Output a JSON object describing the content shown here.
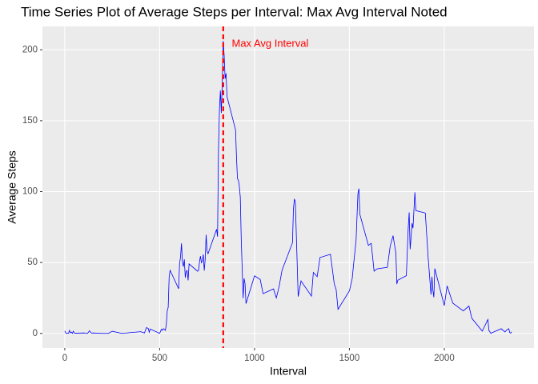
{
  "chart_data": {
    "type": "line",
    "title": "Time Series Plot of Average Steps per Interval: Max Avg Interval Noted",
    "x_label": "Interval",
    "y_label": "Average Steps",
    "x": [
      0,
      5,
      10,
      15,
      20,
      25,
      30,
      35,
      40,
      45,
      50,
      55,
      100,
      110,
      120,
      130,
      140,
      150,
      200,
      230,
      250,
      300,
      320,
      340,
      400,
      420,
      430,
      440,
      445,
      450,
      500,
      505,
      510,
      515,
      520,
      525,
      530,
      535,
      540,
      545,
      550,
      555,
      600,
      605,
      610,
      615,
      620,
      625,
      630,
      635,
      640,
      645,
      650,
      655,
      700,
      705,
      710,
      715,
      720,
      725,
      730,
      735,
      740,
      745,
      750,
      755,
      800,
      805,
      810,
      815,
      820,
      825,
      830,
      835,
      840,
      845,
      850,
      855,
      900,
      905,
      910,
      915,
      920,
      925,
      930,
      935,
      940,
      945,
      950,
      955,
      1000,
      1030,
      1045,
      1100,
      1115,
      1130,
      1145,
      1200,
      1205,
      1210,
      1215,
      1230,
      1245,
      1300,
      1310,
      1330,
      1345,
      1400,
      1420,
      1430,
      1440,
      1500,
      1515,
      1520,
      1535,
      1545,
      1550,
      1555,
      1600,
      1615,
      1630,
      1645,
      1700,
      1715,
      1730,
      1745,
      1750,
      1755,
      1800,
      1810,
      1815,
      1820,
      1825,
      1830,
      1835,
      1845,
      1850,
      1900,
      1915,
      1930,
      1935,
      1940,
      1945,
      1950,
      2000,
      2015,
      2030,
      2045,
      2100,
      2130,
      2145,
      2200,
      2230,
      2235,
      2245,
      2300,
      2320,
      2330,
      2340,
      2345,
      2350,
      2355
    ],
    "values": [
      1.7,
      0.3,
      0.1,
      0.2,
      0.1,
      2.1,
      0.5,
      0.9,
      0,
      1.5,
      0.3,
      0.1,
      0.3,
      0.2,
      0,
      1.8,
      0.2,
      0.3,
      0,
      0,
      1.5,
      0,
      0.2,
      0.5,
      1.2,
      0.3,
      4.1,
      3.5,
      0.8,
      3.1,
      0,
      1.6,
      3,
      2.2,
      3.3,
      3,
      2.1,
      6.1,
      16,
      18.3,
      39.5,
      44.5,
      31.5,
      49.3,
      53.8,
      63.5,
      50,
      47.1,
      52.2,
      39.3,
      44,
      44.2,
      37.4,
      49,
      43.8,
      44.4,
      50.5,
      54.5,
      49.9,
      51,
      55.7,
      44.3,
      52.3,
      69.5,
      57.8,
      56.2,
      73.4,
      68.2,
      129.4,
      157.5,
      171.2,
      155.4,
      177.3,
      206.2,
      195.9,
      179.6,
      183.4,
      167,
      143.5,
      124,
      109.1,
      108.1,
      103.7,
      96,
      66.2,
      45.2,
      24.8,
      38.8,
      35,
      21,
      40.6,
      38,
      28,
      31.4,
      25,
      33.4,
      44.6,
      63.9,
      87.7,
      94.8,
      92.8,
      26,
      37,
      26.3,
      43,
      40,
      53.5,
      55.8,
      35,
      31,
      17,
      30,
      38.8,
      46,
      65.3,
      98.7,
      102.1,
      84,
      62.1,
      63.5,
      43.9,
      45.5,
      46.6,
      61.6,
      68.9,
      56.5,
      34.8,
      37.5,
      40.7,
      74.7,
      85.3,
      59.3,
      67.8,
      77.7,
      74.2,
      99.5,
      86.6,
      84.9,
      53.4,
      27.4,
      40,
      30.2,
      25.5,
      45.7,
      19.6,
      33.5,
      27.3,
      21.3,
      15.9,
      19.3,
      10.7,
      1.6,
      9.8,
      2.2,
      0.1,
      3.3,
      1,
      2.6,
      3.3,
      0.6,
      0.2,
      1.1
    ],
    "color": "#0000ff",
    "xlim": [
      -117.75,
      2472.75
    ],
    "xticks": [
      0,
      500,
      1000,
      1500,
      2000
    ],
    "ylim": [
      -10.3,
      216.5
    ],
    "yticks": [
      0,
      50,
      100,
      150,
      200
    ],
    "grid": true,
    "vline": {
      "x": 835,
      "color": "#ff0000"
    },
    "annotation": {
      "text": "Max Avg Interval",
      "x": 880,
      "y": 204,
      "color": "#ff0000"
    }
  }
}
